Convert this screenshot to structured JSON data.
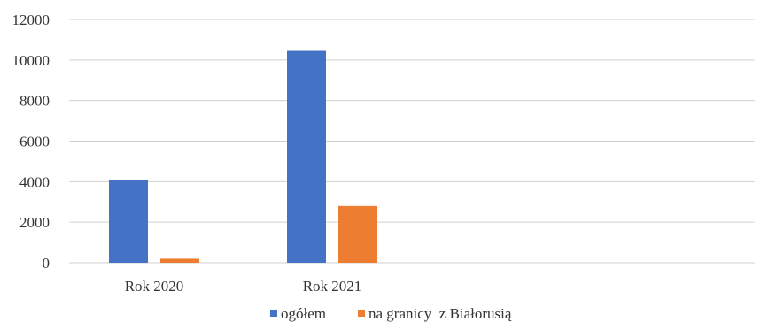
{
  "chart_data": {
    "type": "bar",
    "categories": [
      "Rok 2020",
      "Rok 2021"
    ],
    "series": [
      {
        "name": "ogółem",
        "values": [
          4100,
          10450
        ],
        "color": "#4472C4"
      },
      {
        "name": "na granicy  z Białorusią",
        "values": [
          200,
          2800
        ],
        "color": "#ED7D31"
      }
    ],
    "yticks": [
      "0",
      "2000",
      "4000",
      "6000",
      "8000",
      "10000",
      "12000"
    ],
    "ylim": [
      0,
      12000
    ],
    "grid": true,
    "legend": "bottom-center"
  }
}
